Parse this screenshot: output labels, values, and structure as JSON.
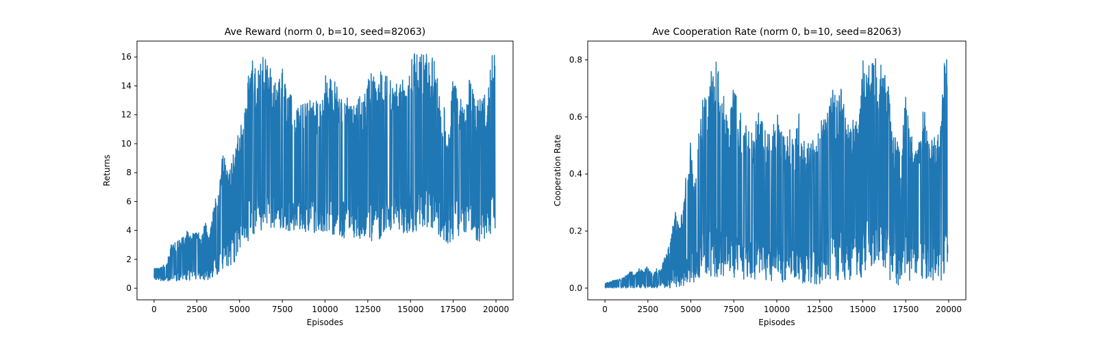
{
  "colors": {
    "series": "#1f77b4",
    "axes": "#000000",
    "background": "#ffffff"
  },
  "chart_data": [
    {
      "type": "line",
      "title": "Ave Reward (norm 0, b=10, seed=82063)",
      "xlabel": "Episodes",
      "ylabel": "Returns",
      "xlim": [
        -1000,
        21000
      ],
      "ylim": [
        -0.8,
        17.1
      ],
      "xticks": [
        0,
        2500,
        5000,
        7500,
        10000,
        12500,
        15000,
        17500,
        20000
      ],
      "yticks": [
        0,
        2,
        4,
        6,
        8,
        10,
        12,
        14,
        16
      ],
      "grid": false,
      "series": [
        {
          "x": [
            0,
            250,
            500,
            750,
            1000,
            1250,
            1500,
            1750,
            2000,
            2250,
            2500,
            2750,
            3000,
            3250,
            3500,
            3750,
            4000,
            4250,
            4500,
            4750,
            5000,
            5250,
            5500,
            5750,
            6000,
            6250,
            6500,
            6750,
            7000,
            7250,
            7500,
            7750,
            8000,
            8250,
            8500,
            8750,
            9000,
            9250,
            9500,
            9750,
            10000,
            10250,
            10500,
            10750,
            11000,
            11250,
            11500,
            11750,
            12000,
            12250,
            12500,
            12750,
            13000,
            13250,
            13500,
            13750,
            14000,
            14250,
            14500,
            14750,
            15000,
            15250,
            15500,
            15750,
            16000,
            16250,
            16500,
            16750,
            17000,
            17250,
            17500,
            17750,
            18000,
            18250,
            18500,
            18750,
            19000,
            19250,
            19500,
            19750,
            19950
          ],
          "low": [
            0.6,
            0.5,
            0.5,
            0.5,
            0.5,
            0.5,
            0.5,
            0.5,
            0.5,
            0.5,
            0.5,
            0.5,
            0.5,
            0.6,
            0.8,
            1.0,
            1.2,
            1.4,
            1.6,
            1.8,
            2.0,
            3.0,
            3.2,
            3.5,
            3.8,
            3.8,
            3.8,
            3.8,
            3.8,
            4.0,
            4.0,
            3.8,
            4.0,
            4.0,
            3.8,
            3.8,
            3.8,
            3.8,
            3.6,
            3.6,
            3.6,
            3.6,
            3.6,
            3.6,
            3.4,
            3.4,
            3.4,
            3.4,
            3.2,
            3.2,
            3.2,
            3.2,
            3.2,
            3.2,
            3.4,
            3.6,
            3.6,
            3.8,
            3.8,
            3.8,
            3.8,
            3.8,
            4.2,
            4.2,
            4.2,
            4.2,
            3.6,
            3.6,
            2.6,
            3.0,
            3.4,
            3.6,
            3.6,
            3.6,
            3.6,
            3.4,
            3.2,
            3.0,
            3.4,
            3.8,
            4.0
          ],
          "high": [
            1.4,
            1.4,
            1.6,
            1.8,
            3.0,
            3.2,
            3.4,
            3.6,
            4.2,
            3.8,
            4.0,
            3.8,
            4.6,
            3.6,
            6.0,
            6.8,
            9.3,
            9.0,
            8.6,
            10.2,
            11.5,
            11.6,
            15.0,
            16.0,
            15.0,
            16.0,
            16.0,
            15.5,
            14.5,
            14.0,
            15.5,
            13.5,
            14.0,
            12.5,
            13.2,
            13.0,
            13.2,
            12.8,
            13.0,
            13.0,
            14.8,
            14.8,
            14.5,
            14.0,
            14.0,
            13.2,
            13.0,
            13.0,
            13.6,
            13.2,
            14.4,
            15.2,
            14.4,
            15.0,
            14.6,
            15.2,
            14.5,
            14.0,
            14.5,
            14.5,
            16.2,
            16.3,
            16.0,
            16.3,
            16.2,
            16.0,
            16.0,
            13.0,
            12.5,
            11.0,
            14.8,
            13.5,
            13.0,
            12.5,
            15.0,
            13.5,
            13.0,
            13.5,
            13.2,
            16.3,
            16.3
          ]
        }
      ]
    },
    {
      "type": "line",
      "title": "Ave Cooperation Rate (norm 0, b=10, seed=82063)",
      "xlabel": "Episodes",
      "ylabel": "Cooperation Rate",
      "xlim": [
        -1000,
        21000
      ],
      "ylim": [
        -0.041,
        0.866
      ],
      "xticks": [
        0,
        2500,
        5000,
        7500,
        10000,
        12500,
        15000,
        17500,
        20000
      ],
      "yticks": [
        0.0,
        0.2,
        0.4,
        0.6,
        0.8
      ],
      "grid": false,
      "series": [
        {
          "x": [
            0,
            250,
            500,
            750,
            1000,
            1250,
            1500,
            1750,
            2000,
            2250,
            2500,
            2750,
            3000,
            3250,
            3500,
            3750,
            4000,
            4250,
            4500,
            4750,
            5000,
            5250,
            5500,
            5750,
            6000,
            6250,
            6500,
            6750,
            7000,
            7250,
            7500,
            7750,
            8000,
            8250,
            8500,
            8750,
            9000,
            9250,
            9500,
            9750,
            10000,
            10250,
            10500,
            10750,
            11000,
            11250,
            11500,
            11750,
            12000,
            12250,
            12500,
            12750,
            13000,
            13250,
            13500,
            13750,
            14000,
            14250,
            14500,
            14750,
            15000,
            15250,
            15500,
            15750,
            16000,
            16250,
            16500,
            16750,
            17000,
            17250,
            17500,
            17750,
            18000,
            18250,
            18500,
            18750,
            19000,
            19250,
            19500,
            19750,
            19950
          ],
          "low": [
            0.0,
            0.0,
            0.0,
            0.0,
            0.0,
            0.0,
            0.0,
            0.0,
            0.0,
            0.0,
            0.0,
            0.0,
            0.0,
            0.0,
            0.0,
            0.0,
            0.0,
            0.0,
            0.0,
            0.0,
            0.0,
            0.02,
            0.02,
            0.02,
            0.04,
            0.04,
            0.04,
            0.04,
            0.04,
            0.03,
            0.03,
            0.03,
            0.03,
            0.03,
            0.03,
            0.03,
            0.03,
            0.03,
            0.02,
            0.02,
            0.02,
            0.02,
            0.02,
            0.02,
            0.02,
            0.02,
            0.01,
            0.01,
            0.01,
            0.01,
            0.01,
            0.01,
            0.01,
            0.01,
            0.02,
            0.03,
            0.03,
            0.03,
            0.03,
            0.03,
            0.04,
            0.04,
            0.06,
            0.06,
            0.06,
            0.06,
            0.02,
            0.02,
            0.01,
            0.01,
            0.02,
            0.02,
            0.03,
            0.03,
            0.03,
            0.03,
            0.02,
            0.02,
            0.02,
            0.03,
            0.1
          ],
          "high": [
            0.02,
            0.02,
            0.03,
            0.03,
            0.04,
            0.05,
            0.06,
            0.05,
            0.07,
            0.06,
            0.08,
            0.05,
            0.07,
            0.06,
            0.12,
            0.15,
            0.28,
            0.25,
            0.26,
            0.42,
            0.52,
            0.4,
            0.6,
            0.72,
            0.65,
            0.8,
            0.81,
            0.7,
            0.66,
            0.6,
            0.73,
            0.63,
            0.62,
            0.56,
            0.55,
            0.58,
            0.63,
            0.56,
            0.55,
            0.58,
            0.62,
            0.56,
            0.52,
            0.58,
            0.5,
            0.62,
            0.58,
            0.5,
            0.54,
            0.52,
            0.56,
            0.7,
            0.62,
            0.7,
            0.66,
            0.71,
            0.6,
            0.56,
            0.62,
            0.6,
            0.8,
            0.82,
            0.78,
            0.82,
            0.8,
            0.8,
            0.78,
            0.55,
            0.52,
            0.5,
            0.68,
            0.55,
            0.52,
            0.52,
            0.66,
            0.6,
            0.52,
            0.55,
            0.53,
            0.82,
            0.82
          ]
        }
      ]
    }
  ]
}
